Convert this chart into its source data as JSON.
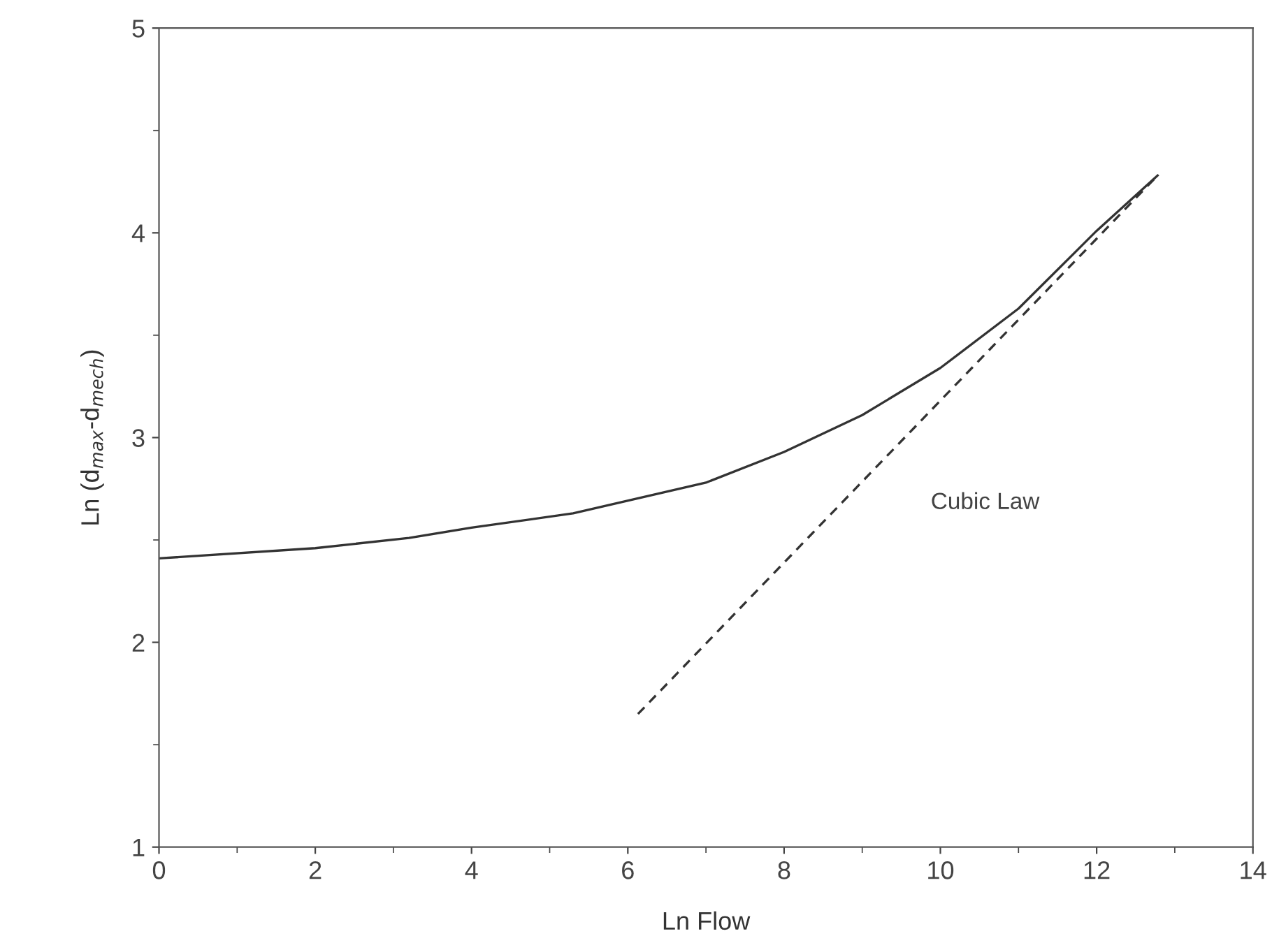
{
  "chart_data": {
    "type": "line",
    "xlabel": "Ln Flow",
    "ylabel": "Ln (d$_{max}$-d$_{mech}$)",
    "xlim": [
      0,
      14
    ],
    "ylim": [
      1,
      5
    ],
    "xticks": [
      0,
      2,
      4,
      6,
      8,
      10,
      12,
      14
    ],
    "yticks": [
      1,
      2,
      3,
      4,
      5
    ],
    "grid": false,
    "legend": false,
    "marker": "none",
    "series": [
      {
        "color": "#333333",
        "line_style": "solid",
        "x": [
          0,
          2,
          3.2,
          4,
          5.3,
          7,
          8,
          9,
          10,
          11,
          12,
          12.78
        ],
        "values": [
          2.41,
          2.46,
          2.51,
          2.56,
          2.63,
          2.78,
          2.93,
          3.11,
          3.34,
          3.63,
          4.01,
          4.28
        ]
      },
      {
        "name": "Cubic Law",
        "color": "#333333",
        "line_style": "dashed",
        "x": [
          6.13,
          12.78
        ],
        "values": [
          1.65,
          4.28
        ]
      }
    ]
  }
}
